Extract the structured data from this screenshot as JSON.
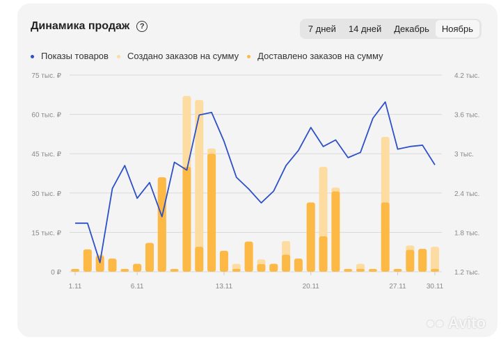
{
  "header": {
    "title": "Динамика продаж",
    "help_icon": "question-circle-icon"
  },
  "periods": [
    {
      "label": "7 дней",
      "active": false
    },
    {
      "label": "14 дней",
      "active": false
    },
    {
      "label": "Декабрь",
      "active": false
    },
    {
      "label": "Ноябрь",
      "active": true
    }
  ],
  "watermark": "Avito",
  "chart_data": {
    "type": "bar+line",
    "title": "Динамика продаж",
    "legend_position": "top-left",
    "grid": true,
    "x": [
      1,
      2,
      3,
      4,
      5,
      6,
      7,
      8,
      9,
      10,
      11,
      12,
      13,
      14,
      15,
      16,
      17,
      18,
      19,
      20,
      21,
      22,
      23,
      24,
      25,
      26,
      27,
      28,
      29,
      30
    ],
    "x_tick_labels": [
      {
        "day": 1,
        "label": "1.11"
      },
      {
        "day": 6,
        "label": "6.11"
      },
      {
        "day": 13,
        "label": "13.11"
      },
      {
        "day": 20,
        "label": "20.11"
      },
      {
        "day": 27,
        "label": "27.11"
      },
      {
        "day": 30,
        "label": "30.11"
      }
    ],
    "y_left": {
      "ylim": [
        0,
        75
      ],
      "ticks": [
        0,
        15,
        30,
        45,
        60,
        75
      ],
      "tick_labels": [
        "0 ₽",
        "15 тыс. ₽",
        "30 тыс. ₽",
        "45 тыс. ₽",
        "60 тыс. ₽",
        "75 тыс. ₽"
      ],
      "unit": "тыс. ₽"
    },
    "y_right": {
      "ylim": [
        1.2,
        4.2
      ],
      "ticks": [
        1.2,
        1.8,
        2.4,
        3,
        3.6,
        4.2
      ],
      "tick_labels": [
        "1.2 тыс.",
        "1.8 тыс.",
        "2.4 тыс.",
        "3 тыс.",
        "3.6 тыс.",
        "4.2 тыс."
      ],
      "unit": "тыс."
    },
    "series": [
      {
        "name": "Показы товаров",
        "type": "line",
        "axis": "right",
        "color": "#2d4fc8",
        "values": [
          1.94,
          1.94,
          1.34,
          2.47,
          2.82,
          2.32,
          2.56,
          2.04,
          2.87,
          2.75,
          3.59,
          3.63,
          3.19,
          2.64,
          2.46,
          2.25,
          2.43,
          2.82,
          3.05,
          3.4,
          3.11,
          3.21,
          2.94,
          3.02,
          3.54,
          3.79,
          3.07,
          3.11,
          3.13,
          2.83
        ]
      },
      {
        "name": "Создано заказов на сумму",
        "type": "bar",
        "axis": "left",
        "color": "#fcdca0",
        "values": [
          1,
          8.5,
          6.5,
          5,
          1,
          3,
          11,
          36,
          1,
          67,
          65.5,
          47,
          8,
          3,
          11.5,
          4.7,
          3,
          11.7,
          5,
          26.4,
          40,
          32.1,
          1,
          3,
          1,
          51.4,
          1,
          10,
          8.7,
          9.5
        ]
      },
      {
        "name": "Доставлено заказов на сумму",
        "type": "bar",
        "axis": "left",
        "color": "#fdb946",
        "values": [
          1,
          8.5,
          6,
          5,
          1,
          3,
          11,
          36,
          1,
          40,
          9.5,
          45,
          8,
          1,
          11.5,
          2.9,
          3,
          6.5,
          5,
          26.4,
          13.5,
          30.6,
          1,
          1,
          1,
          26.4,
          1,
          8.3,
          8.7,
          1
        ]
      }
    ]
  }
}
